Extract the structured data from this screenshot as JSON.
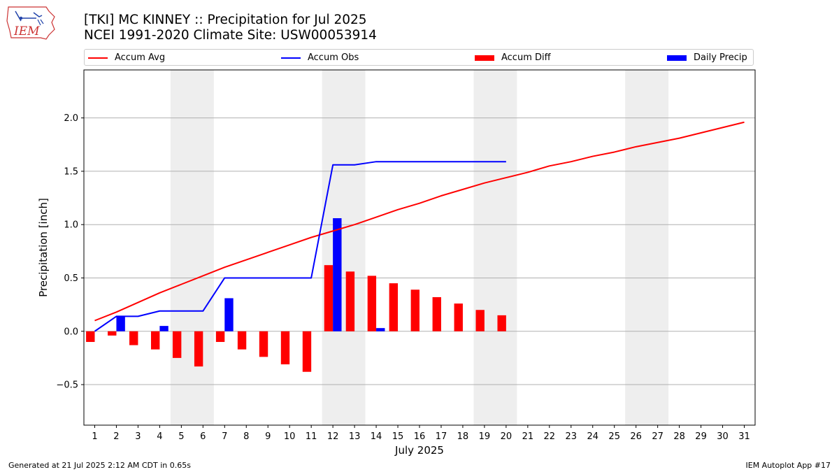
{
  "logo": {
    "text": "IEM"
  },
  "title": {
    "line1": "[TKI] MC KINNEY :: Precipitation for Jul 2025",
    "line2": "NCEI 1991-2020 Climate Site: USW00053914"
  },
  "footer": {
    "left": "Generated at 21 Jul 2025 2:12 AM CDT in 0.65s",
    "right": "IEM Autoplot App #17"
  },
  "colors": {
    "avg": "#ff0000",
    "obs": "#0000ff",
    "diff": "#ff0000",
    "daily": "#0000ff",
    "weekend": "#eeeeee",
    "grid": "#b0b0b0"
  },
  "chart_data": {
    "type": "bar",
    "xlabel": "July 2025",
    "ylabel": "Precipitation [inch]",
    "xlim": [
      0.5,
      31.5
    ],
    "ylim": [
      -0.88,
      2.45
    ],
    "x_ticks": [
      1,
      2,
      3,
      4,
      5,
      6,
      7,
      8,
      9,
      10,
      11,
      12,
      13,
      14,
      15,
      16,
      17,
      18,
      19,
      20,
      21,
      22,
      23,
      24,
      25,
      26,
      27,
      28,
      29,
      30,
      31
    ],
    "y_ticks": [
      -0.5,
      0.0,
      0.5,
      1.0,
      1.5,
      2.0
    ],
    "y_tick_labels": [
      "−0.5",
      "0.0",
      "0.5",
      "1.0",
      "1.5",
      "2.0"
    ],
    "grid": "horizontal",
    "legend_position": "top (above plot)",
    "weekend_shading": [
      [
        4.5,
        6.5
      ],
      [
        11.5,
        13.5
      ],
      [
        18.5,
        20.5
      ],
      [
        25.5,
        27.5
      ]
    ],
    "series": [
      {
        "name": "Accum Avg",
        "kind": "line",
        "color": "#ff0000",
        "x": [
          1,
          2,
          3,
          4,
          5,
          6,
          7,
          8,
          9,
          10,
          11,
          12,
          13,
          14,
          15,
          16,
          17,
          18,
          19,
          20,
          21,
          22,
          23,
          24,
          25,
          26,
          27,
          28,
          29,
          30,
          31
        ],
        "values": [
          0.1,
          0.18,
          0.27,
          0.36,
          0.44,
          0.52,
          0.6,
          0.67,
          0.74,
          0.81,
          0.88,
          0.94,
          1.0,
          1.07,
          1.14,
          1.2,
          1.27,
          1.33,
          1.39,
          1.44,
          1.49,
          1.55,
          1.59,
          1.64,
          1.68,
          1.73,
          1.77,
          1.81,
          1.86,
          1.91,
          1.96
        ]
      },
      {
        "name": "Accum Obs",
        "kind": "line",
        "color": "#0000ff",
        "x": [
          1,
          2,
          3,
          4,
          5,
          6,
          7,
          8,
          9,
          10,
          11,
          12,
          13,
          14,
          15,
          16,
          17,
          18,
          19,
          20
        ],
        "values": [
          0.0,
          0.14,
          0.14,
          0.19,
          0.19,
          0.19,
          0.5,
          0.5,
          0.5,
          0.5,
          0.5,
          1.56,
          1.56,
          1.59,
          1.59,
          1.59,
          1.59,
          1.59,
          1.59,
          1.59
        ]
      },
      {
        "name": "Accum Diff",
        "kind": "bar",
        "color": "#ff0000",
        "offset": -0.2,
        "x": [
          1,
          2,
          3,
          4,
          5,
          6,
          7,
          8,
          9,
          10,
          11,
          12,
          13,
          14,
          15,
          16,
          17,
          18,
          19,
          20
        ],
        "values": [
          -0.1,
          -0.04,
          -0.13,
          -0.17,
          -0.25,
          -0.33,
          -0.1,
          -0.17,
          -0.24,
          -0.31,
          -0.38,
          0.62,
          0.56,
          0.52,
          0.45,
          0.39,
          0.32,
          0.26,
          0.2,
          0.15
        ]
      },
      {
        "name": "Daily Precip",
        "kind": "bar",
        "color": "#0000ff",
        "offset": 0.2,
        "x": [
          1,
          2,
          3,
          4,
          5,
          6,
          7,
          8,
          9,
          10,
          11,
          12,
          13,
          14,
          15,
          16,
          17,
          18,
          19,
          20
        ],
        "values": [
          0.0,
          0.14,
          0.0,
          0.05,
          0.0,
          0.0,
          0.31,
          0.0,
          0.0,
          0.0,
          0.0,
          1.06,
          0.0,
          0.03,
          0.0,
          0.0,
          0.0,
          0.0,
          0.0,
          0.0
        ]
      }
    ]
  }
}
